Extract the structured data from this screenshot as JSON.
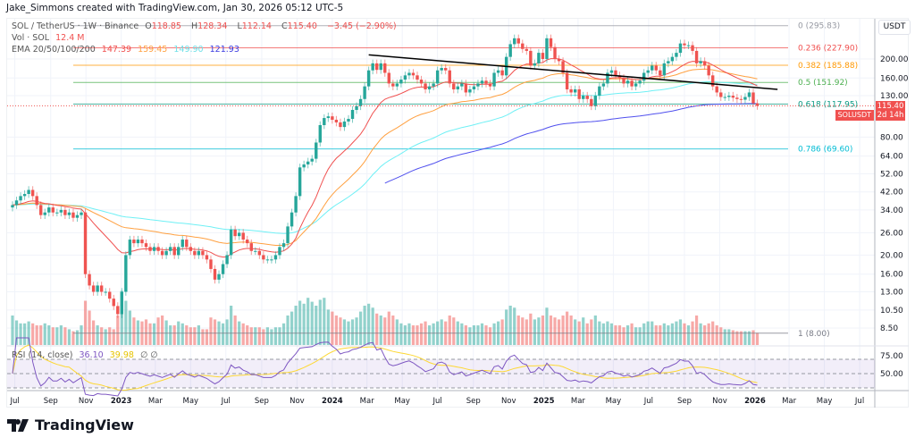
{
  "credit": "Jake_Simmons created with TradingView.com, Jan 30, 2026 05:12 UTC-5",
  "legend": {
    "symbol": "SOL / TetherUS · 1W · Binance",
    "o_label": "O",
    "o": "118.85",
    "h_label": "H",
    "h": "128.34",
    "l_label": "L",
    "l": "112.14",
    "c_label": "C",
    "c": "115.40",
    "change": "−3.45 (−2.90%)",
    "vol_label": "Vol · SOL",
    "vol": "12.4 M",
    "ema_label": "EMA 20/50/100/200",
    "ema20": "147.39",
    "ema50": "159.45",
    "ema100": "149.90",
    "ema200": "121.93",
    "rsi_label": "RSI (14, close)",
    "rsi": "36.10",
    "rsi_ma": "39.98",
    "rsi_icons": "∅ ∅"
  },
  "price_axis": {
    "currency": "USDT",
    "ticks": [
      "200.00",
      "160.00",
      "130.00",
      "80.00",
      "64.00",
      "52.00",
      "42.00",
      "34.00",
      "26.00",
      "20.00",
      "16.00",
      "13.00",
      "10.50",
      "8.50"
    ],
    "rsi_ticks": [
      "75.00",
      "50.00"
    ],
    "last_price": "115.40",
    "countdown": "2d 14h",
    "symbol_tag": "SOLUSDT"
  },
  "time_axis": [
    {
      "label": "Jul",
      "date": "2022-07-01"
    },
    {
      "label": "Sep",
      "date": "2022-09-01"
    },
    {
      "label": "Nov",
      "date": "2022-11-01"
    },
    {
      "label": "2023",
      "date": "2023-01-01",
      "bold": true
    },
    {
      "label": "Mar",
      "date": "2023-03-01"
    },
    {
      "label": "May",
      "date": "2023-05-01"
    },
    {
      "label": "Jul",
      "date": "2023-07-01"
    },
    {
      "label": "Sep",
      "date": "2023-09-01"
    },
    {
      "label": "Nov",
      "date": "2023-11-01"
    },
    {
      "label": "2024",
      "date": "2024-01-01",
      "bold": true
    },
    {
      "label": "Mar",
      "date": "2024-03-01"
    },
    {
      "label": "May",
      "date": "2024-05-01"
    },
    {
      "label": "Jul",
      "date": "2024-07-01"
    },
    {
      "label": "Sep",
      "date": "2024-09-01"
    },
    {
      "label": "Nov",
      "date": "2024-11-01"
    },
    {
      "label": "2025",
      "date": "2025-01-01",
      "bold": true
    },
    {
      "label": "Mar",
      "date": "2025-03-01"
    },
    {
      "label": "May",
      "date": "2025-05-01"
    },
    {
      "label": "Jul",
      "date": "2025-07-01"
    },
    {
      "label": "Sep",
      "date": "2025-09-01"
    },
    {
      "label": "Nov",
      "date": "2025-11-01"
    },
    {
      "label": "2026",
      "date": "2026-01-01",
      "bold": true
    },
    {
      "label": "Mar",
      "date": "2026-03-01"
    },
    {
      "label": "May",
      "date": "2026-05-01"
    },
    {
      "label": "Jul",
      "date": "2026-07-01"
    }
  ],
  "fib_levels": [
    {
      "label": "0 (295.83)",
      "price": 295.83,
      "color": "#9598a1"
    },
    {
      "label": "0.236 (227.90)",
      "price": 227.9,
      "color": "#f0504f"
    },
    {
      "label": "0.382 (185.88)",
      "price": 185.88,
      "color": "#ff9800"
    },
    {
      "label": "0.5 (151.92)",
      "price": 151.92,
      "color": "#4caf50"
    },
    {
      "label": "0.618 (117.95)",
      "price": 117.95,
      "color": "#089981"
    },
    {
      "label": "0.786 (69.60)",
      "price": 69.6,
      "color": "#00bcd4"
    },
    {
      "label": "1 (8.00)",
      "price": 8.0,
      "color": "#787b86"
    }
  ],
  "colors": {
    "up": "#26a69a",
    "down": "#ef5350",
    "ema20": "#f0504f",
    "ema50": "#ffa040",
    "ema100": "#6ff0f5",
    "ema200": "#5050ee",
    "rsi": "#7e57c2",
    "rsi_ma": "#fdd835",
    "trendline": "#000000"
  },
  "logo": "TradingView",
  "chart_data": {
    "type": "candlestick",
    "interval": "1W",
    "start_date": "2022-06-27",
    "y_scale": "log",
    "ylim": [
      7.5,
      320
    ],
    "closes": [
      36,
      38,
      40,
      41,
      43,
      40,
      36,
      32,
      33,
      35,
      33,
      33,
      34,
      32,
      33,
      31,
      32,
      33,
      16,
      14,
      13,
      14,
      13,
      13,
      12,
      11,
      10,
      13,
      20,
      24,
      23,
      24,
      23,
      22,
      21,
      22,
      21,
      20,
      21,
      22,
      20,
      22,
      24,
      22,
      21,
      20,
      21,
      20,
      19,
      17,
      15,
      16,
      18,
      20,
      27,
      25,
      26,
      24,
      23,
      21,
      21,
      20,
      19,
      19,
      19,
      20,
      22,
      23,
      28,
      33,
      40,
      56,
      58,
      60,
      62,
      75,
      92,
      100,
      102,
      98,
      95,
      90,
      96,
      99,
      110,
      115,
      125,
      145,
      175,
      190,
      176,
      190,
      170,
      150,
      145,
      150,
      157,
      165,
      170,
      165,
      157,
      150,
      140,
      145,
      150,
      175,
      180,
      175,
      150,
      140,
      145,
      150,
      135,
      140,
      145,
      150,
      155,
      150,
      145,
      170,
      175,
      165,
      205,
      238,
      255,
      240,
      225,
      220,
      185,
      190,
      215,
      200,
      255,
      230,
      200,
      195,
      170,
      140,
      135,
      140,
      125,
      130,
      125,
      115,
      130,
      145,
      150,
      170,
      175,
      165,
      160,
      150,
      155,
      145,
      150,
      155,
      170,
      175,
      185,
      175,
      165,
      190,
      195,
      205,
      215,
      240,
      235,
      235,
      220,
      190,
      195,
      185,
      165,
      145,
      135,
      128,
      128,
      130,
      127,
      125,
      124,
      128,
      135,
      118.85,
      115.4
    ],
    "volumes_millions": [
      30,
      25,
      22,
      22,
      24,
      22,
      20,
      20,
      22,
      20,
      18,
      18,
      20,
      18,
      16,
      14,
      15,
      20,
      45,
      35,
      25,
      20,
      18,
      16,
      18,
      16,
      30,
      55,
      45,
      35,
      28,
      25,
      24,
      26,
      22,
      22,
      28,
      30,
      25,
      20,
      20,
      24,
      22,
      20,
      18,
      18,
      20,
      16,
      16,
      28,
      26,
      24,
      22,
      26,
      40,
      30,
      24,
      22,
      20,
      18,
      18,
      18,
      16,
      18,
      16,
      18,
      18,
      22,
      30,
      34,
      40,
      45,
      42,
      48,
      44,
      40,
      46,
      48,
      36,
      34,
      30,
      28,
      26,
      24,
      26,
      28,
      34,
      40,
      42,
      38,
      32,
      30,
      28,
      34,
      30,
      26,
      22,
      20,
      22,
      20,
      20,
      22,
      24,
      20,
      22,
      24,
      26,
      24,
      30,
      28,
      24,
      22,
      20,
      18,
      20,
      20,
      22,
      20,
      18,
      22,
      24,
      26,
      36,
      40,
      38,
      30,
      28,
      26,
      32,
      26,
      28,
      30,
      38,
      30,
      28,
      26,
      30,
      34,
      30,
      26,
      24,
      28,
      22,
      26,
      30,
      24,
      22,
      24,
      22,
      20,
      20,
      18,
      20,
      22,
      18,
      18,
      22,
      24,
      24,
      20,
      20,
      22,
      20,
      22,
      24,
      26,
      22,
      20,
      24,
      30,
      22,
      20,
      22,
      24,
      20,
      18,
      16,
      16,
      15,
      14,
      14,
      14,
      14,
      15,
      12.4
    ],
    "trendline": {
      "from": {
        "date": "2024-03-04",
        "price": 210
      },
      "to": {
        "date": "2026-02-09",
        "price": 140
      }
    }
  }
}
